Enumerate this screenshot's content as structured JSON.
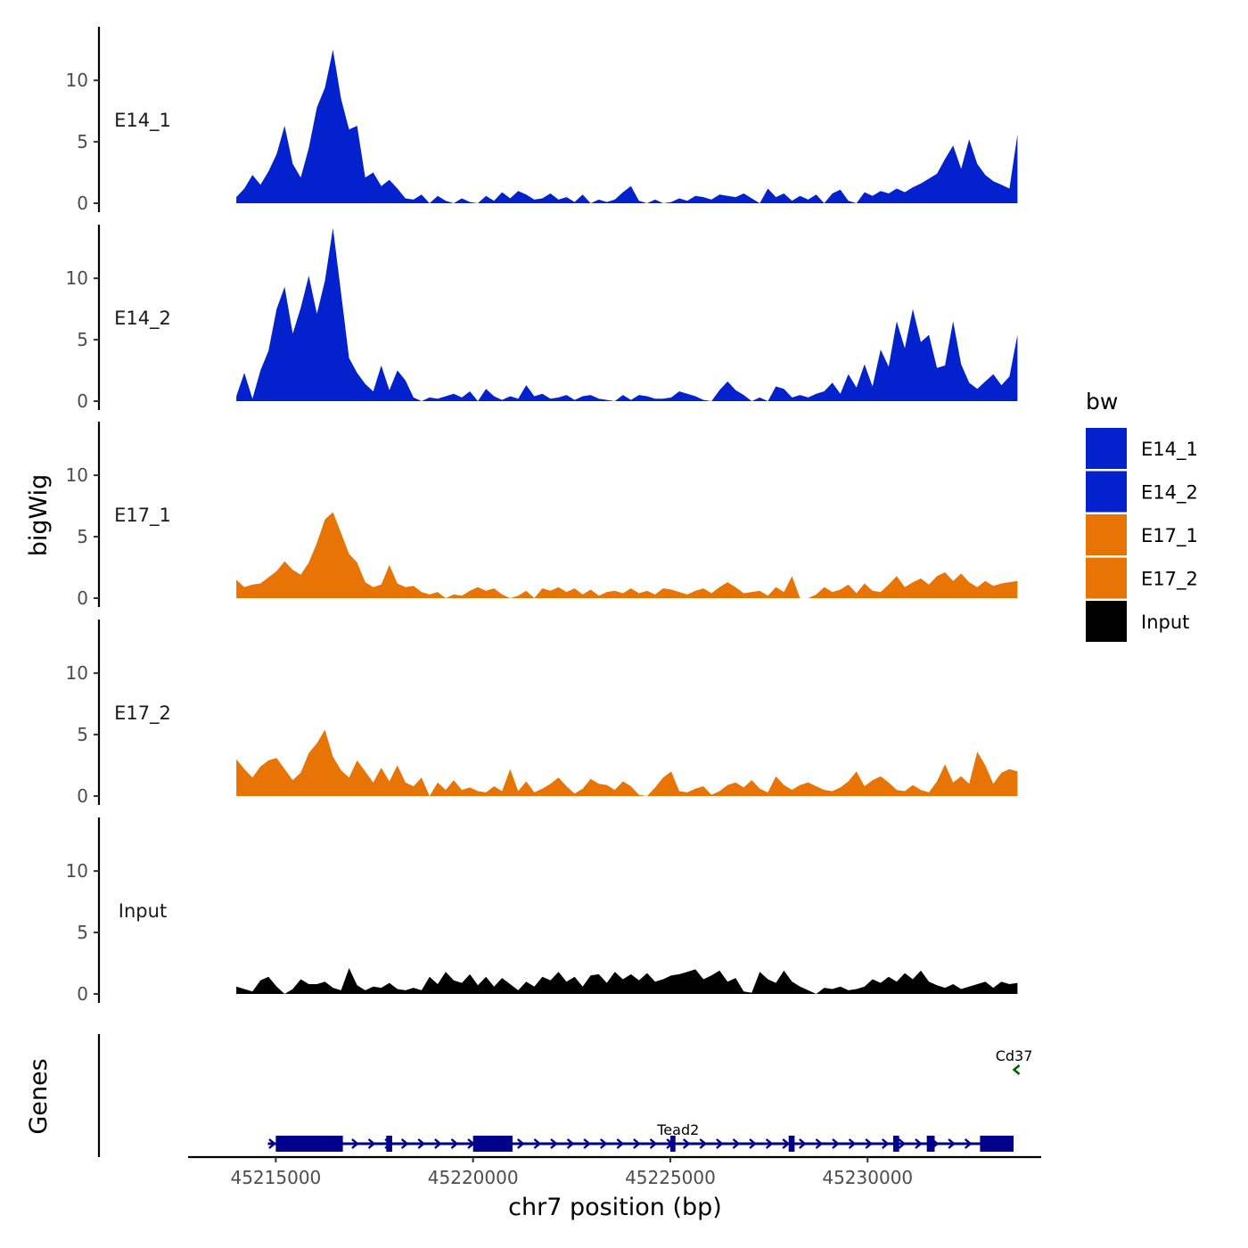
{
  "chart_data": {
    "type": "area",
    "title": "",
    "ylabel": "bigWig",
    "xlabel": "chr7 position (bp)",
    "genes_label": "Genes",
    "xlim": [
      45212800,
      45234400
    ],
    "data_range": [
      45214000,
      45233800
    ],
    "xticks": [
      45215000,
      45220000,
      45225000,
      45230000
    ],
    "xtick_labels": [
      "45215000",
      "45220000",
      "45225000",
      "45230000"
    ],
    "ylim": [
      0,
      14
    ],
    "yticks": [
      0,
      5,
      10
    ],
    "ytick_labels": [
      "0",
      "5",
      "10"
    ],
    "legend": {
      "title": "bw",
      "position": "right",
      "entries": [
        {
          "name": "E14_1",
          "color": "#0321cc"
        },
        {
          "name": "E14_2",
          "color": "#0321cc"
        },
        {
          "name": "E17_1",
          "color": "#e87405"
        },
        {
          "name": "E17_2",
          "color": "#e87405"
        },
        {
          "name": "Input",
          "color": "#000000"
        }
      ]
    },
    "series": [
      {
        "name": "E14_1",
        "color": "#0321cc",
        "values": [
          0.5,
          1.2,
          2.3,
          1.5,
          2.6,
          4.0,
          6.3,
          3.2,
          2.1,
          4.5,
          7.8,
          9.4,
          12.5,
          8.5,
          6.0,
          6.3,
          2.1,
          2.5,
          1.4,
          1.9,
          1.2,
          0.4,
          0.3,
          0.7,
          0.0,
          0.6,
          0.2,
          0.0,
          0.4,
          0.1,
          0.0,
          0.6,
          0.2,
          0.9,
          0.4,
          1.0,
          0.7,
          0.3,
          0.4,
          0.8,
          0.3,
          0.5,
          0.1,
          0.7,
          0.0,
          0.3,
          0.1,
          0.3,
          0.9,
          1.4,
          0.2,
          0.0,
          0.3,
          0.0,
          0.1,
          0.4,
          0.2,
          0.6,
          0.5,
          0.3,
          0.7,
          0.6,
          0.5,
          0.8,
          0.4,
          0.0,
          1.2,
          0.5,
          0.8,
          0.2,
          0.6,
          0.3,
          0.7,
          0.0,
          0.8,
          1.1,
          0.2,
          0.0,
          0.9,
          0.6,
          1.0,
          0.8,
          1.2,
          0.9,
          1.3,
          1.6,
          2.0,
          2.4,
          3.6,
          4.7,
          2.8,
          5.2,
          3.2,
          2.3,
          1.8,
          1.5,
          1.2,
          5.6
        ]
      },
      {
        "name": "E14_2",
        "color": "#0321cc",
        "values": [
          0.4,
          2.3,
          0.2,
          2.5,
          4.1,
          7.5,
          9.3,
          5.5,
          7.6,
          10.2,
          7.1,
          9.8,
          14.1,
          8.8,
          3.5,
          2.3,
          1.4,
          0.8,
          2.9,
          0.9,
          2.5,
          1.7,
          0.3,
          0.0,
          0.3,
          0.2,
          0.4,
          0.6,
          0.3,
          0.8,
          0.0,
          1.0,
          0.4,
          0.1,
          0.4,
          0.2,
          1.3,
          0.4,
          0.6,
          0.2,
          0.3,
          0.5,
          0.1,
          0.4,
          0.5,
          0.2,
          0.1,
          0.0,
          0.5,
          0.1,
          0.5,
          0.4,
          0.2,
          0.2,
          0.3,
          0.8,
          0.6,
          0.4,
          0.1,
          0.0,
          0.9,
          1.6,
          0.9,
          0.5,
          0.0,
          0.3,
          0.0,
          1.2,
          1.0,
          0.3,
          0.5,
          0.3,
          0.6,
          0.8,
          1.5,
          0.6,
          2.2,
          1.1,
          3.0,
          1.2,
          4.2,
          2.8,
          6.5,
          4.3,
          7.5,
          4.8,
          5.4,
          2.7,
          2.9,
          6.5,
          3.0,
          1.5,
          1.0,
          1.6,
          2.2,
          1.3,
          2.0,
          5.4
        ]
      },
      {
        "name": "E17_1",
        "color": "#e87405",
        "values": [
          1.5,
          0.9,
          1.1,
          1.2,
          1.7,
          2.2,
          3.0,
          2.3,
          1.9,
          2.9,
          4.5,
          6.4,
          7.0,
          5.3,
          3.6,
          2.9,
          1.3,
          0.9,
          1.1,
          2.7,
          1.2,
          0.9,
          1.0,
          0.5,
          0.3,
          0.5,
          0.0,
          0.3,
          0.2,
          0.6,
          0.9,
          0.6,
          0.8,
          0.3,
          0.0,
          0.2,
          0.6,
          0.0,
          0.8,
          0.6,
          0.9,
          0.5,
          0.8,
          0.3,
          0.7,
          0.2,
          0.5,
          0.6,
          0.4,
          0.8,
          0.4,
          0.6,
          0.3,
          0.8,
          0.7,
          0.5,
          0.3,
          0.6,
          0.8,
          0.4,
          0.9,
          1.3,
          0.9,
          0.4,
          0.5,
          0.6,
          0.2,
          0.9,
          0.5,
          1.8,
          0.0,
          0.0,
          0.3,
          0.9,
          0.5,
          0.7,
          1.1,
          0.4,
          1.2,
          0.6,
          0.5,
          1.1,
          1.8,
          0.9,
          1.3,
          1.6,
          1.1,
          1.8,
          2.1,
          1.4,
          2.0,
          1.3,
          0.9,
          1.4,
          1.0,
          1.2,
          1.3,
          1.4
        ]
      },
      {
        "name": "E17_2",
        "color": "#e87405",
        "values": [
          3.0,
          2.2,
          1.5,
          2.4,
          2.9,
          3.1,
          2.2,
          1.3,
          1.9,
          3.5,
          4.3,
          5.4,
          3.2,
          2.1,
          1.5,
          2.9,
          2.0,
          1.1,
          2.3,
          1.2,
          2.5,
          1.1,
          0.8,
          1.5,
          0.0,
          1.1,
          0.5,
          1.3,
          0.5,
          0.7,
          0.4,
          0.3,
          0.8,
          0.4,
          2.2,
          0.4,
          1.2,
          0.3,
          0.6,
          1.0,
          1.5,
          0.8,
          0.2,
          0.6,
          1.4,
          1.0,
          0.9,
          0.5,
          1.2,
          0.8,
          0.1,
          0.0,
          0.7,
          1.5,
          2.0,
          0.4,
          0.3,
          0.6,
          0.8,
          0.1,
          0.4,
          0.9,
          1.1,
          0.7,
          1.3,
          0.6,
          0.3,
          1.6,
          0.9,
          0.5,
          0.9,
          1.1,
          0.8,
          0.5,
          0.4,
          0.7,
          1.2,
          2.0,
          0.8,
          1.3,
          1.6,
          1.1,
          0.5,
          0.4,
          0.9,
          0.5,
          0.3,
          1.2,
          2.6,
          1.1,
          1.6,
          1.0,
          3.6,
          2.5,
          1.0,
          1.9,
          2.2,
          2.0
        ]
      },
      {
        "name": "Input",
        "color": "#000000",
        "values": [
          0.6,
          0.4,
          0.2,
          1.1,
          1.4,
          0.6,
          0.0,
          0.4,
          1.2,
          0.8,
          0.8,
          1.0,
          0.5,
          0.3,
          2.1,
          0.7,
          0.3,
          0.6,
          0.5,
          0.9,
          0.4,
          0.3,
          0.5,
          0.3,
          1.4,
          0.8,
          1.8,
          1.1,
          0.9,
          1.6,
          0.7,
          1.4,
          0.6,
          1.3,
          0.8,
          0.3,
          1.0,
          0.6,
          1.4,
          1.1,
          1.8,
          1.0,
          1.4,
          0.6,
          1.5,
          1.6,
          0.9,
          1.8,
          1.2,
          1.6,
          1.1,
          1.7,
          1.0,
          1.2,
          1.5,
          1.6,
          1.8,
          2.0,
          1.2,
          1.5,
          1.9,
          1.0,
          1.3,
          0.2,
          0.1,
          1.8,
          1.2,
          0.9,
          1.9,
          1.0,
          0.6,
          0.3,
          0.0,
          0.5,
          0.4,
          0.6,
          0.3,
          0.4,
          0.6,
          1.2,
          0.9,
          1.4,
          1.0,
          1.7,
          1.2,
          1.9,
          1.0,
          0.7,
          0.5,
          0.8,
          0.4,
          0.6,
          0.8,
          1.0,
          0.5,
          1.0,
          0.8,
          0.9
        ]
      }
    ],
    "genes": [
      {
        "name": "Tead2",
        "strand": "+",
        "color": "#00008b",
        "start": 45214800,
        "end": 45233700,
        "exons": [
          [
            45215000,
            45216700
          ],
          [
            45217800,
            45217950
          ],
          [
            45220000,
            45221000
          ],
          [
            45225000,
            45225130
          ],
          [
            45228000,
            45228150
          ],
          [
            45230650,
            45230800
          ],
          [
            45231500,
            45231700
          ],
          [
            45232850,
            45233700
          ]
        ]
      },
      {
        "name": "Cd37",
        "strand": "-",
        "color": "#006400",
        "start": 45233750,
        "end": 45233900,
        "exons": []
      }
    ]
  }
}
